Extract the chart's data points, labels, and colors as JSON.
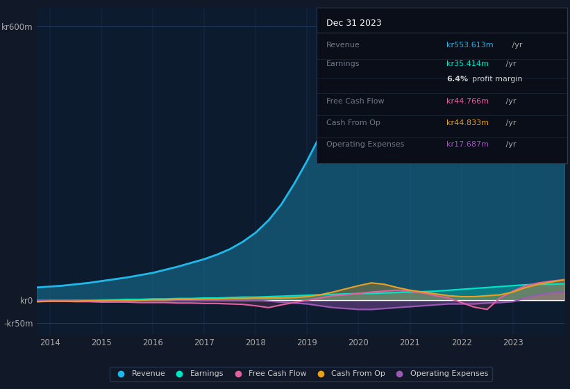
{
  "bg_color": "#111827",
  "plot_bg_color": "#0d1b2e",
  "grid_color": "#1e3a5f",
  "years": [
    2013.75,
    2014.0,
    2014.25,
    2014.5,
    2014.75,
    2015.0,
    2015.25,
    2015.5,
    2015.75,
    2016.0,
    2016.25,
    2016.5,
    2016.75,
    2017.0,
    2017.25,
    2017.5,
    2017.75,
    2018.0,
    2018.25,
    2018.5,
    2018.75,
    2019.0,
    2019.25,
    2019.5,
    2019.75,
    2020.0,
    2020.25,
    2020.5,
    2020.75,
    2021.0,
    2021.25,
    2021.5,
    2021.75,
    2022.0,
    2022.25,
    2022.5,
    2022.75,
    2023.0,
    2023.25,
    2023.5,
    2023.75,
    2024.0
  ],
  "revenue": [
    28,
    30,
    32,
    35,
    38,
    42,
    46,
    50,
    55,
    60,
    67,
    74,
    82,
    90,
    100,
    112,
    128,
    148,
    175,
    210,
    255,
    305,
    360,
    405,
    435,
    450,
    430,
    390,
    345,
    315,
    310,
    325,
    350,
    380,
    415,
    455,
    495,
    530,
    550,
    553,
    553,
    555
  ],
  "earnings": [
    -2,
    -1,
    -1,
    0,
    0,
    1,
    1,
    2,
    2,
    3,
    3,
    4,
    4,
    5,
    5,
    6,
    7,
    7,
    8,
    9,
    10,
    11,
    12,
    13,
    14,
    15,
    15,
    16,
    17,
    18,
    19,
    20,
    22,
    24,
    26,
    28,
    30,
    32,
    34,
    35,
    35,
    36
  ],
  "free_cash": [
    -3,
    -2,
    -2,
    -3,
    -3,
    -4,
    -4,
    -4,
    -5,
    -5,
    -5,
    -6,
    -6,
    -7,
    -7,
    -8,
    -9,
    -12,
    -16,
    -10,
    -5,
    0,
    5,
    10,
    12,
    15,
    18,
    20,
    22,
    20,
    16,
    10,
    5,
    -5,
    -15,
    -20,
    5,
    20,
    32,
    38,
    42,
    45
  ],
  "cash_from_op": [
    -3,
    -2,
    -2,
    -2,
    -1,
    -1,
    0,
    0,
    0,
    1,
    1,
    2,
    2,
    3,
    3,
    4,
    4,
    5,
    5,
    5,
    6,
    8,
    12,
    18,
    25,
    32,
    38,
    35,
    28,
    22,
    18,
    14,
    10,
    8,
    8,
    10,
    12,
    18,
    28,
    35,
    40,
    45
  ],
  "op_expenses": [
    0,
    0,
    0,
    0,
    0,
    0,
    0,
    0,
    0,
    0,
    0,
    0,
    0,
    0,
    0,
    0,
    0,
    0,
    -2,
    -4,
    -6,
    -8,
    -12,
    -16,
    -18,
    -20,
    -20,
    -18,
    -16,
    -14,
    -12,
    -10,
    -8,
    -8,
    -8,
    -6,
    -5,
    -3,
    5,
    12,
    16,
    18
  ],
  "ylim": [
    -75,
    640
  ],
  "xlim": [
    2013.75,
    2024.0
  ],
  "ytick_positions": [
    -50,
    0,
    600
  ],
  "ytick_labels": [
    "-kr50m",
    "kr0",
    "kr600m"
  ],
  "xticks": [
    2014,
    2015,
    2016,
    2017,
    2018,
    2019,
    2020,
    2021,
    2022,
    2023
  ],
  "revenue_color": "#1fb8e8",
  "earnings_color": "#00e5c8",
  "free_cash_color": "#e060a0",
  "cash_from_op_color": "#e8a020",
  "op_expenses_color": "#9b59b6",
  "legend_labels": [
    "Revenue",
    "Earnings",
    "Free Cash Flow",
    "Cash From Op",
    "Operating Expenses"
  ],
  "legend_colors": [
    "#1fb8e8",
    "#00e5c8",
    "#e060a0",
    "#e8a020",
    "#9b59b6"
  ],
  "info_title": "Dec 31 2023",
  "info_rows": [
    {
      "label": "Revenue",
      "value": "kr553.613m /yr",
      "value_color": "#1fb8e8"
    },
    {
      "label": "Earnings",
      "value": "kr35.414m /yr",
      "value_color": "#00e5c8"
    },
    {
      "label": "",
      "value": "6.4% profit margin",
      "value_color": "#cccccc",
      "bold_6": true
    },
    {
      "label": "Free Cash Flow",
      "value": "kr44.766m /yr",
      "value_color": "#e060a0"
    },
    {
      "label": "Cash From Op",
      "value": "kr44.833m /yr",
      "value_color": "#e8a020"
    },
    {
      "label": "Operating Expenses",
      "value": "kr17.687m /yr",
      "value_color": "#9b59b6"
    }
  ]
}
